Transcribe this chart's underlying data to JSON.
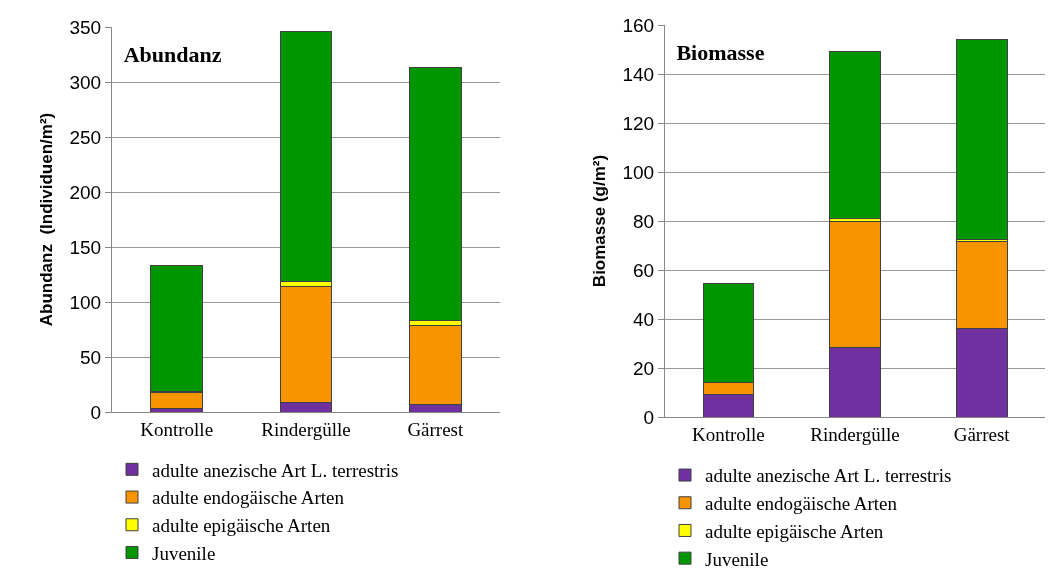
{
  "chart_data": [
    {
      "type": "bar",
      "title": "Abundanz",
      "ylabel": "Abundanz  (Individuen/m²)",
      "categories": [
        "Kontrolle",
        "Rindergülle",
        "Gärrest"
      ],
      "stacked": true,
      "ylim": [
        0,
        350
      ],
      "yticks": [
        0,
        50,
        100,
        150,
        200,
        250,
        300,
        350
      ],
      "grid": "y",
      "legend": "bottom",
      "series": [
        {
          "name": "adulte anezische Art L. terrestris",
          "color": "#7030a0",
          "values": [
            3,
            9,
            7
          ]
        },
        {
          "name": "adulte endogäische Arten",
          "color": "#f79400",
          "values": [
            15,
            105,
            72
          ]
        },
        {
          "name": "adulte epigäische Arten",
          "color": "#ffff00",
          "values": [
            1,
            5,
            4
          ]
        },
        {
          "name": "Juvenile",
          "color": "#009600",
          "values": [
            114,
            227,
            230
          ]
        }
      ]
    },
    {
      "type": "bar",
      "title": "Biomasse",
      "ylabel": "Biomasse (g/m²)",
      "categories": [
        "Kontrolle",
        "Rindergülle",
        "Gärrest"
      ],
      "stacked": true,
      "ylim": [
        0,
        160
      ],
      "yticks": [
        0,
        20,
        40,
        60,
        80,
        100,
        120,
        140,
        160
      ],
      "grid": "y",
      "legend": "bottom",
      "series": [
        {
          "name": "adulte anezische Art L. terrestris",
          "color": "#7030a0",
          "values": [
            9,
            28.5,
            36
          ]
        },
        {
          "name": "adulte endogäische Arten",
          "color": "#f79400",
          "values": [
            5,
            51.5,
            35.5
          ]
        },
        {
          "name": "adulte epigäische Arten",
          "color": "#ffff00",
          "values": [
            0,
            1,
            1
          ]
        },
        {
          "name": "Juvenile",
          "color": "#009600",
          "values": [
            40.5,
            68,
            81.5
          ]
        }
      ]
    }
  ]
}
